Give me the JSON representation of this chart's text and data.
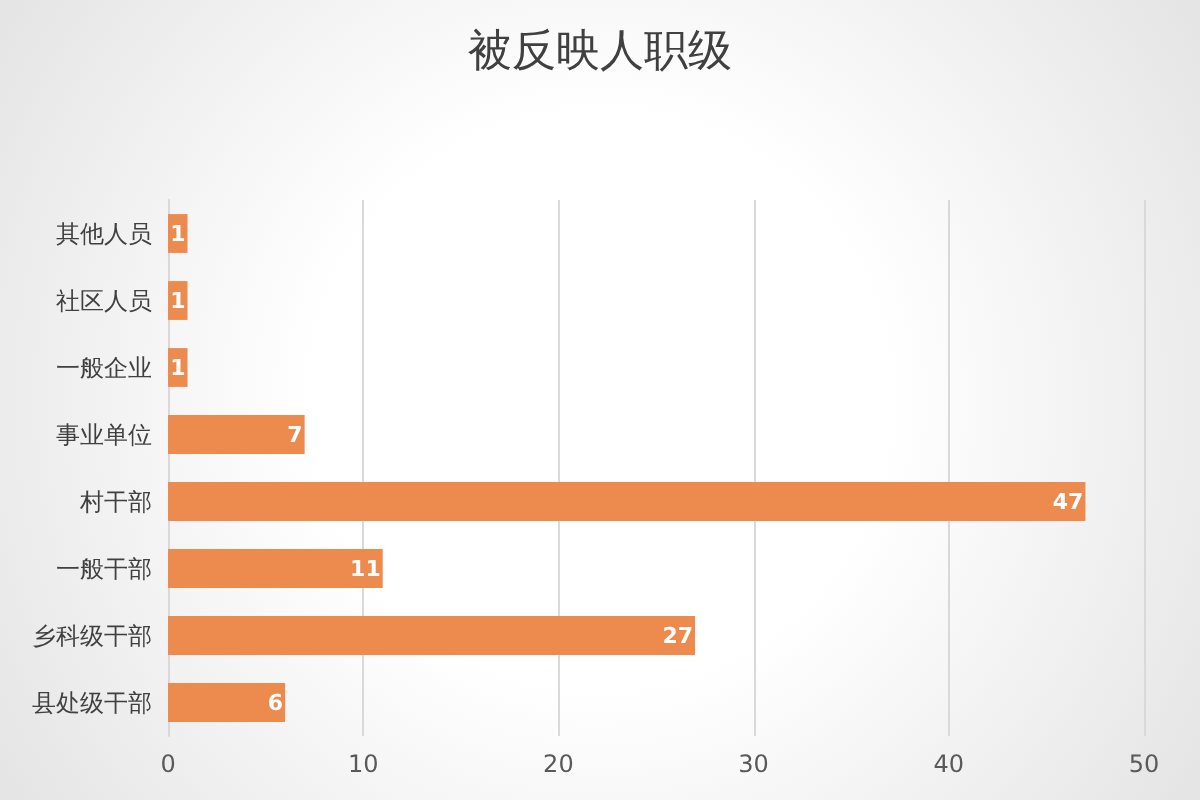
{
  "chart_data": {
    "type": "bar",
    "orientation": "horizontal",
    "title": "被反映人职级",
    "categories": [
      "其他人员",
      "社区人员",
      "一般企业",
      "事业单位",
      "村干部",
      "一般干部",
      "乡科级干部",
      "县处级干部"
    ],
    "values": [
      1,
      1,
      1,
      7,
      47,
      11,
      27,
      6
    ],
    "color": "#ed8b4e",
    "xlim": [
      0,
      50
    ],
    "xticks": [
      0,
      10,
      20,
      30,
      40,
      50
    ],
    "grid": "x",
    "data_labels": true
  }
}
